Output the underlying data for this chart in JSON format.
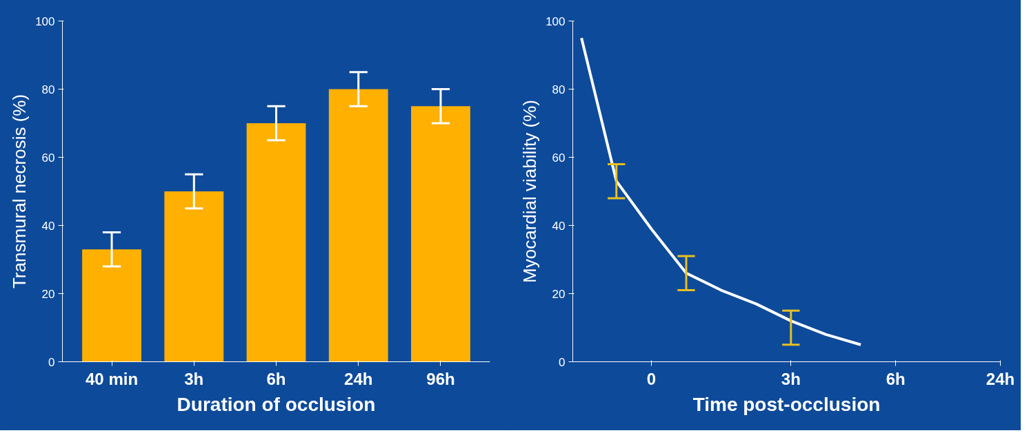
{
  "chart_data": [
    {
      "type": "bar",
      "xlabel": "Duration of occlusion",
      "ylabel": "Transmural necrosis (%)",
      "categories": [
        "40 min",
        "3h",
        "6h",
        "24h",
        "96h"
      ],
      "values": [
        33,
        50,
        70,
        80,
        75
      ],
      "errors": [
        5,
        5,
        5,
        5,
        5
      ],
      "color": "#ffb000",
      "ylim": [
        0,
        100
      ],
      "yticks": [
        0,
        20,
        40,
        60,
        80,
        100
      ],
      "grid": false
    },
    {
      "type": "line",
      "xlabel": "Time post-occlusion",
      "ylabel": "Myocardial viability (%)",
      "categories": [
        null,
        null,
        "0",
        null,
        null,
        null,
        "3h",
        null,
        null,
        "6h",
        null,
        null,
        "24h"
      ],
      "values": [
        95,
        53,
        39,
        26,
        21,
        17,
        12,
        8,
        5,
        null,
        null,
        null,
        null
      ],
      "errors": [
        null,
        [
          48,
          58
        ],
        null,
        [
          21,
          31
        ],
        null,
        null,
        [
          5,
          15
        ],
        null,
        null,
        null,
        null,
        null,
        null
      ],
      "color": "#ffffff",
      "ylim": [
        0,
        100
      ],
      "yticks": [
        0,
        20,
        40,
        60,
        80,
        100
      ],
      "grid": false,
      "marker": "none"
    }
  ]
}
